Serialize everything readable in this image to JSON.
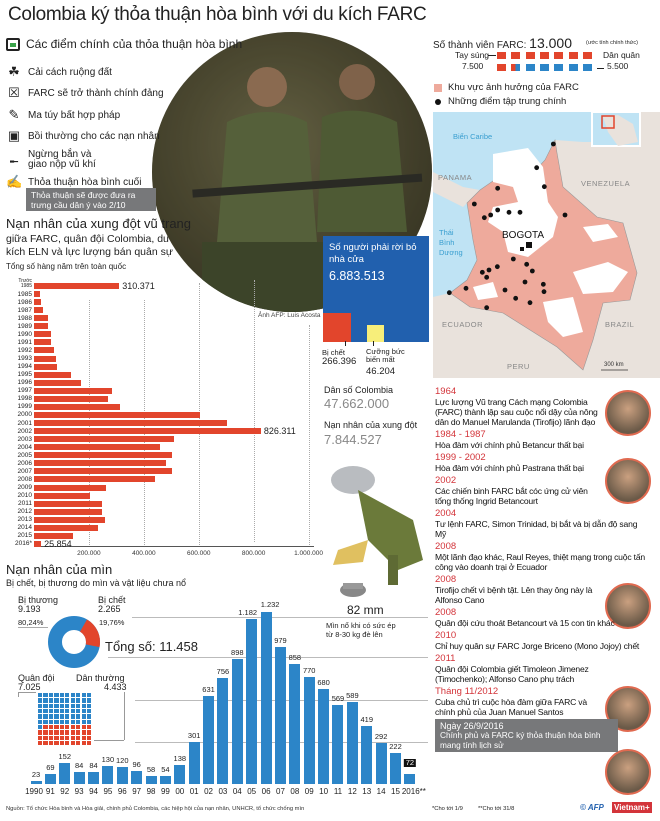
{
  "title": "Colombia ký thỏa thuận hòa bình với du kích FARC",
  "key_points": {
    "heading": "Các điểm chính của thỏa thuận hòa bình",
    "items": [
      {
        "icon": "plant-hand-icon",
        "label": "Cải cách ruộng đất"
      },
      {
        "icon": "ballot-box-icon",
        "label": "FARC sẽ trở thành chính đảng"
      },
      {
        "icon": "syringe-icon",
        "label": "Ma túy bất hợp pháp"
      },
      {
        "icon": "money-icon",
        "label": "Bồi thường cho các nạn nhân"
      },
      {
        "icon": "rifle-icon",
        "label": "Ngừng bắn và giao nộp vũ khí"
      },
      {
        "icon": "signed-document-icon",
        "label": "Thỏa thuận hòa bình cuối"
      }
    ],
    "note": "Thỏa thuận sẽ được đưa ra trưng cầu dân ý vào 2/10"
  },
  "photo_credit": "Ảnh AFP: Luis Acosta",
  "conflict": {
    "title": "Nạn nhân của xung đột vũ trang",
    "subtitle_1": "giữa FARC, quân đội Colombia, du",
    "subtitle_2": "kích ELN và lực lượng bán quân sự",
    "caption": "Tổng số hàng năm trên toàn quốc"
  },
  "displaced": {
    "label": "Số người phải rời bỏ nhà cửa",
    "value": "6.883.513",
    "killed_label": "Bị chết",
    "killed_value": "266.396",
    "disappeared_label": "Cưỡng bức biến mất",
    "disappeared_value": "46.204",
    "population_label": "Dân số Colombia",
    "population_value": "47.662.000",
    "victims_label": "Nạn nhân của xung đột",
    "victims_value": "7.844.527"
  },
  "farc_members": {
    "label": "Số thành viên FARC:",
    "value": "13.000",
    "note": "(ước tính chính thức)",
    "fighters_label": "Tay súng",
    "fighters_value": "7.500",
    "fighters_fraction": 0.577,
    "militia_label": "Dân quân",
    "militia_value": "5.500"
  },
  "map": {
    "legend_area": "Khu vực ảnh hưởng của FARC",
    "legend_points": "Những điểm tập trung chính",
    "labels": {
      "caribbean": "Biển Caribe",
      "panama": "PANAMA",
      "venezuela": "VENEZUELA",
      "pacific_1": "Thái",
      "pacific_2": "Bình",
      "pacific_3": "Dương",
      "bogota": "BOGOTA",
      "ecuador": "ECUADOR",
      "brazil": "BRAZIL",
      "peru": "PERU",
      "scale": "300 km"
    }
  },
  "timeline": [
    {
      "date": "1964",
      "text": "Lực lượng Vũ trang Cách mạng Colombia (FARC) thành lập sau cuộc nổi dậy của nông dân do Manuel Marulanda (Tirofijo) lãnh đạo"
    },
    {
      "date": "1984 - 1987",
      "text": "Hòa đàm với chính phủ Betancur thất bại"
    },
    {
      "date": "1999 - 2002",
      "text": "Hòa đàm với chính phủ Pastrana thất bại"
    },
    {
      "date": "2002",
      "text": "Các chiến binh FARC bắt cóc ứng cử viên tổng thống Ingrid Betancourt"
    },
    {
      "date": "2004",
      "text": "Tư lệnh FARC, Simon Trinidad, bị bắt và bị dẫn độ sang Mỹ"
    },
    {
      "date": "2008",
      "text": "Một lãnh đạo khác, Raul Reyes, thiệt mạng trong cuộc tấn công vào doanh trại ở Ecuador"
    },
    {
      "date": "2008",
      "text": "Tirofijo chết vì bệnh tật. Lên thay ông này là Alfonso Cano"
    },
    {
      "date": "2008",
      "text": "Quân đội cứu thoát Betancourt và 15 con tin khác"
    },
    {
      "date": "2010",
      "text": "Chỉ huy quân sự FARC Jorge Briceno (Mono Jojoy) chết"
    },
    {
      "date": "2011",
      "text": "Quân đội Colombia giết Timoleon Jimenez (Timochenko); Alfonso Cano phụ trách"
    },
    {
      "date": "Tháng 11/2012",
      "text": "Cuba chủ trì cuộc hòa đàm giữa FARC và chính phủ của Juan Manuel Santos"
    }
  ],
  "timeline_final": {
    "date": "Ngày 26/9/2016",
    "text": "Chính phủ và FARC ký thỏa thuận hòa bình mang tính lịch sử"
  },
  "mines": {
    "title": "Nạn nhân của mìn",
    "subtitle": "Bị chết, bị thương do mìn và vật liệu chưa nổ",
    "injured_label": "Bị thương",
    "injured_value": "9.193",
    "injured_pct": "80,24%",
    "killed_label": "Bị chết",
    "killed_value": "2.265",
    "killed_pct": "19,76%",
    "killed_fraction": 0.1976,
    "total": "Tổng số: 11.458",
    "military_label": "Quân đội",
    "military_value": "7.025",
    "civilian_label": "Dân thường",
    "civilian_value": "4.433",
    "mine_size": "82 mm",
    "mine_note_1": "Mìn nổ khi có sức ép",
    "mine_note_2": "từ 8-30 kg đè lên"
  },
  "chart_data": [
    {
      "type": "bar",
      "orientation": "horizontal",
      "title": "Tổng số hàng năm trên toàn quốc",
      "categories": [
        "Trước 1985",
        "1985",
        "1986",
        "1987",
        "1988",
        "1989",
        "1990",
        "1991",
        "1992",
        "1993",
        "1994",
        "1995",
        "1996",
        "1997",
        "1998",
        "1999",
        "2000",
        "2001",
        "2002",
        "2003",
        "2004",
        "2005",
        "2006",
        "2007",
        "2008",
        "2009",
        "2010",
        "2011",
        "2012",
        "2013",
        "2014",
        "2015",
        "2016*"
      ],
      "values": [
        310371,
        23000,
        25000,
        33000,
        52000,
        51000,
        61000,
        62000,
        73000,
        79000,
        82000,
        133000,
        171000,
        285000,
        269000,
        313000,
        604000,
        704000,
        826311,
        510000,
        459000,
        504000,
        481000,
        501000,
        442000,
        263000,
        204000,
        246000,
        248000,
        259000,
        234000,
        142000,
        25854
      ],
      "data_labels": {
        "0": "310.371",
        "18": "826.311",
        "32": "25.854"
      },
      "xlim": [
        0,
        1000000
      ],
      "xticks": [
        "200.000",
        "400.000",
        "600.000",
        "800.000",
        "1.000.000"
      ],
      "color": "#e2452c"
    },
    {
      "type": "bar",
      "orientation": "vertical",
      "title": "Nạn nhân của mìn",
      "categories": [
        "1990",
        "91",
        "92",
        "93",
        "94",
        "95",
        "96",
        "97",
        "98",
        "99",
        "00",
        "01",
        "02",
        "03",
        "04",
        "05",
        "06",
        "07",
        "08",
        "09",
        "10",
        "11",
        "12",
        "13",
        "14",
        "15",
        "2016**"
      ],
      "values": [
        23,
        69,
        152,
        84,
        84,
        130,
        120,
        96,
        58,
        54,
        138,
        301,
        631,
        756,
        898,
        1182,
        1232,
        979,
        858,
        770,
        680,
        569,
        589,
        419,
        292,
        222,
        72
      ],
      "labels": [
        "23",
        "69",
        "152",
        "84",
        "84",
        "130",
        "120",
        "96",
        "58",
        "54",
        "138",
        "301",
        "631",
        "756",
        "898",
        "1.182",
        "1.232",
        "979",
        "858",
        "770",
        "680",
        "569",
        "589",
        "419",
        "292",
        "222",
        "72"
      ],
      "ylim": [
        0,
        1250
      ],
      "color": "#2c85c8"
    },
    {
      "type": "pie",
      "title": "Bị chết, bị thương",
      "categories": [
        "Bị thương",
        "Bị chết"
      ],
      "values": [
        9193,
        2265
      ]
    }
  ],
  "footer": {
    "source": "Nguồn: Tổ chức Hòa bình và Hòa giải, chính phủ Colombia, các hiệp hội của nạn nhân, UNHCR, tổ chức chống mìn",
    "note1": "*Cho tới 1/9",
    "note2": "**Cho tới 31/8",
    "logo_afp": "© AFP",
    "logo_vn": "Vietnam+"
  },
  "colors": {
    "red": "#e2452c",
    "blue": "#2160ae",
    "bar_blue": "#2c85c8",
    "pink": "#eeaa9c",
    "gray_box": "#77787a",
    "date_red": "#d3343a"
  }
}
